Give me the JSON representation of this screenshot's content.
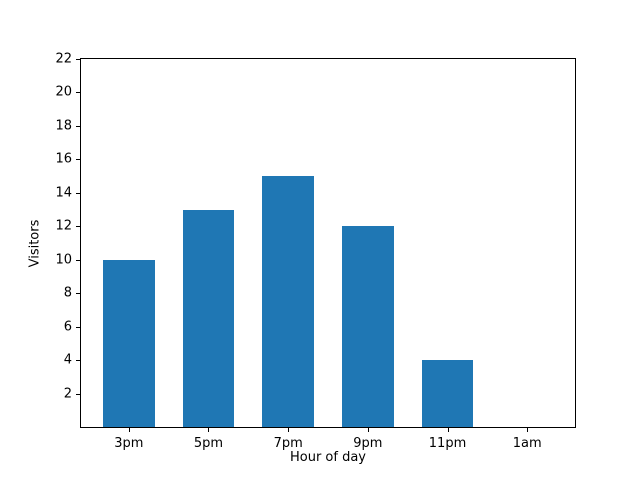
{
  "chart_data": {
    "type": "bar",
    "title": "",
    "xlabel": "Hour of day",
    "ylabel": "Visitors",
    "categories": [
      "3pm",
      "5pm",
      "7pm",
      "9pm",
      "11pm",
      "1am"
    ],
    "values": [
      10,
      13,
      15,
      12,
      4,
      0
    ],
    "ylim": [
      0,
      22
    ],
    "yticks": [
      2,
      4,
      6,
      8,
      10,
      12,
      14,
      16,
      18,
      20,
      22
    ],
    "bar_color": "#1f77b4",
    "background_color": "#ffffff",
    "axis_color": "#000000",
    "grid": false,
    "legend_position": "none"
  }
}
